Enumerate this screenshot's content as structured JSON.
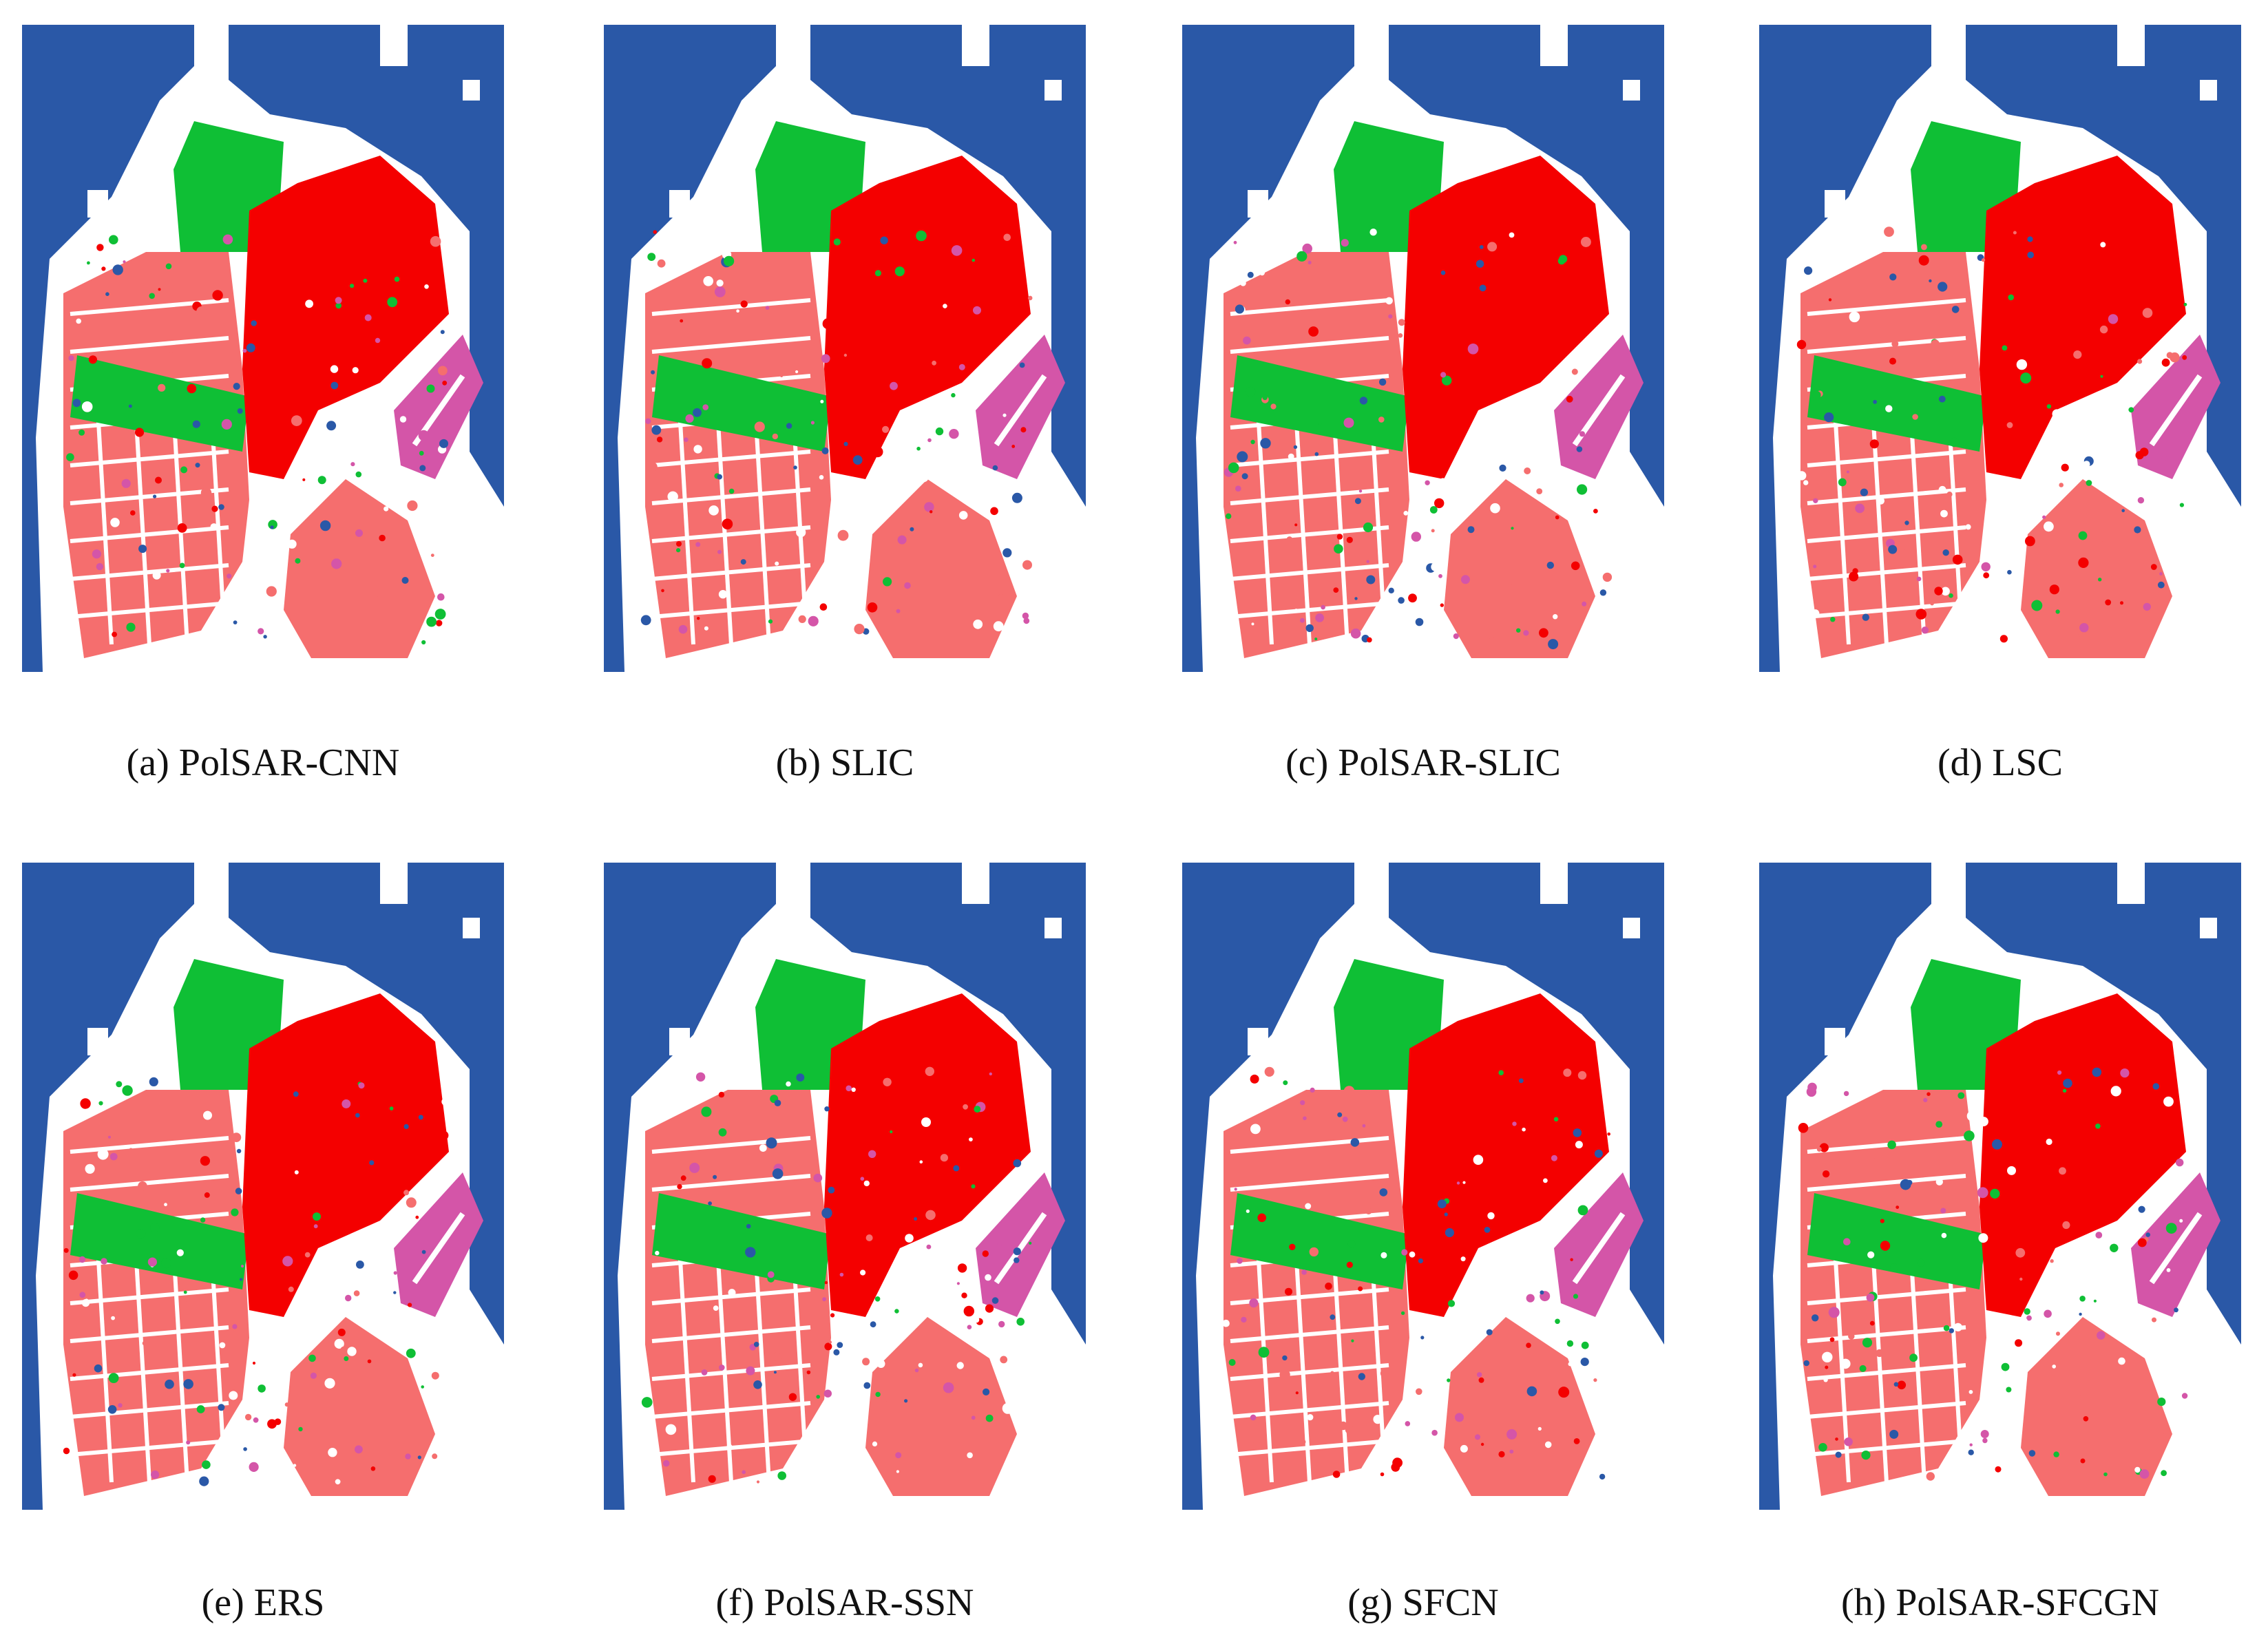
{
  "colors": {
    "water": "#2a58a7",
    "background": "#ffffff",
    "vegetation": "#0fbf35",
    "high_density_urban": "#f40000",
    "low_density_urban": "#f56e6e",
    "developed": "#d455a8"
  },
  "panels": [
    {
      "caption": "(a) PolSAR-CNN"
    },
    {
      "caption": "(b) SLIC"
    },
    {
      "caption": "(c) PolSAR-SLIC"
    },
    {
      "caption": "(d) LSC"
    },
    {
      "caption": "(e) ERS"
    },
    {
      "caption": "(f) PolSAR-SSN"
    },
    {
      "caption": "(g) SFCN"
    },
    {
      "caption": "(h) PolSAR-SFCGN"
    }
  ]
}
